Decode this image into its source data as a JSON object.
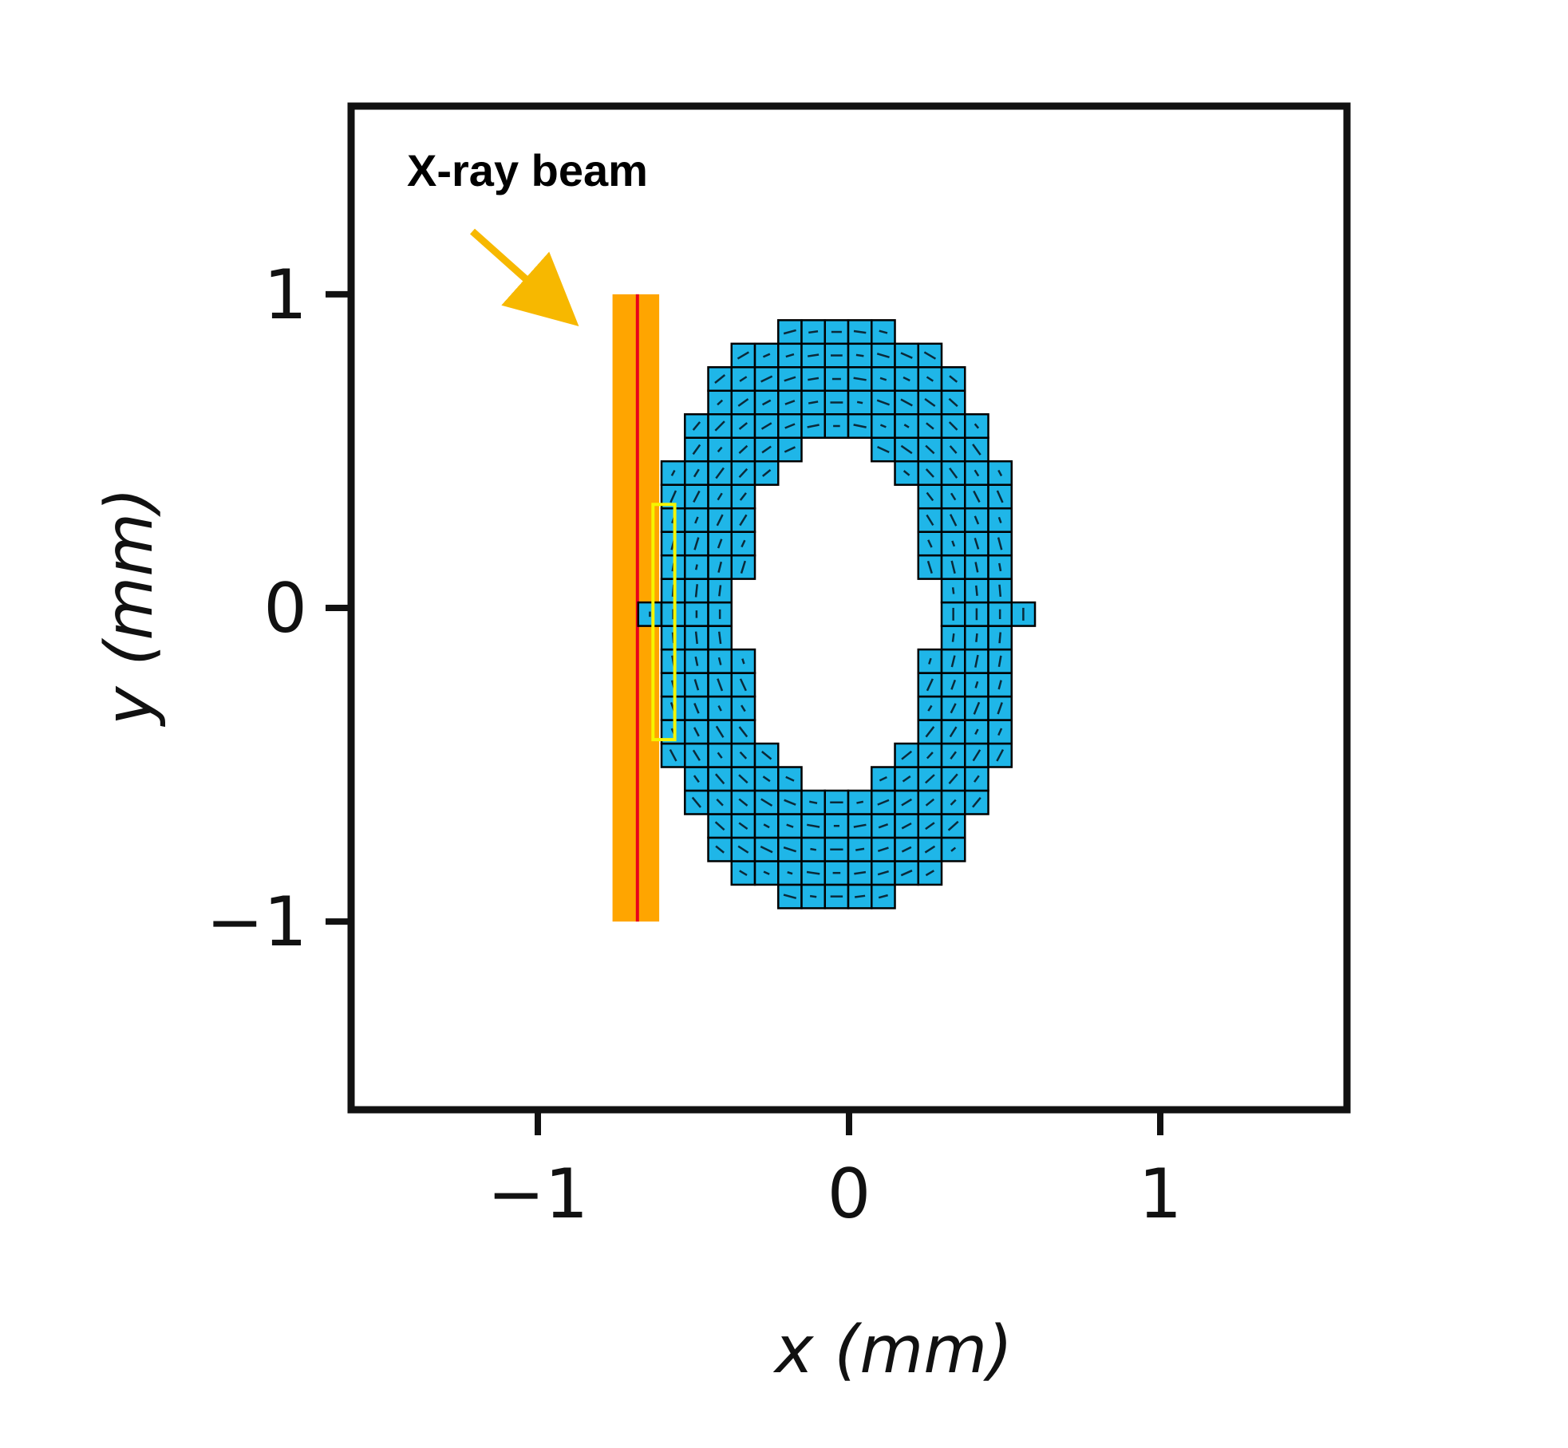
{
  "chart_data": {
    "type": "scatter",
    "xlabel": "x (mm)",
    "ylabel": "y (mm)",
    "xlim": [
      -1.6,
      1.6
    ],
    "ylim": [
      -1.6,
      1.6
    ],
    "x_ticks": [
      -1,
      0,
      1
    ],
    "y_ticks": [
      -1,
      0,
      1
    ],
    "x_tick_labels": [
      "−1",
      "0",
      "1"
    ],
    "y_tick_labels": [
      "−1",
      "0",
      "1"
    ],
    "grid": false,
    "sample": {
      "shape": "elliptical annulus of square voxels",
      "center": [
        -0.04,
        -0.02
      ],
      "outer_semi_axes": [
        0.6,
        0.97
      ],
      "inner_semi_axes": [
        0.31,
        0.57
      ],
      "voxel_size": 0.075,
      "fill_color": "#1fb6e8",
      "edge_color": "#000000"
    },
    "beam": {
      "x_min": -0.76,
      "x_max": -0.61,
      "y_range": [
        -1.0,
        1.0
      ],
      "center_x": -0.68,
      "fill_color": "#ffa500",
      "line_color": "#e8001c"
    },
    "highlight": {
      "x_min": -0.63,
      "x_max": -0.56,
      "y_range": [
        -0.42,
        0.33
      ],
      "color": "#f5f500"
    },
    "annotations": [
      {
        "text": "X-ray beam",
        "color": "#f7b800"
      }
    ]
  }
}
